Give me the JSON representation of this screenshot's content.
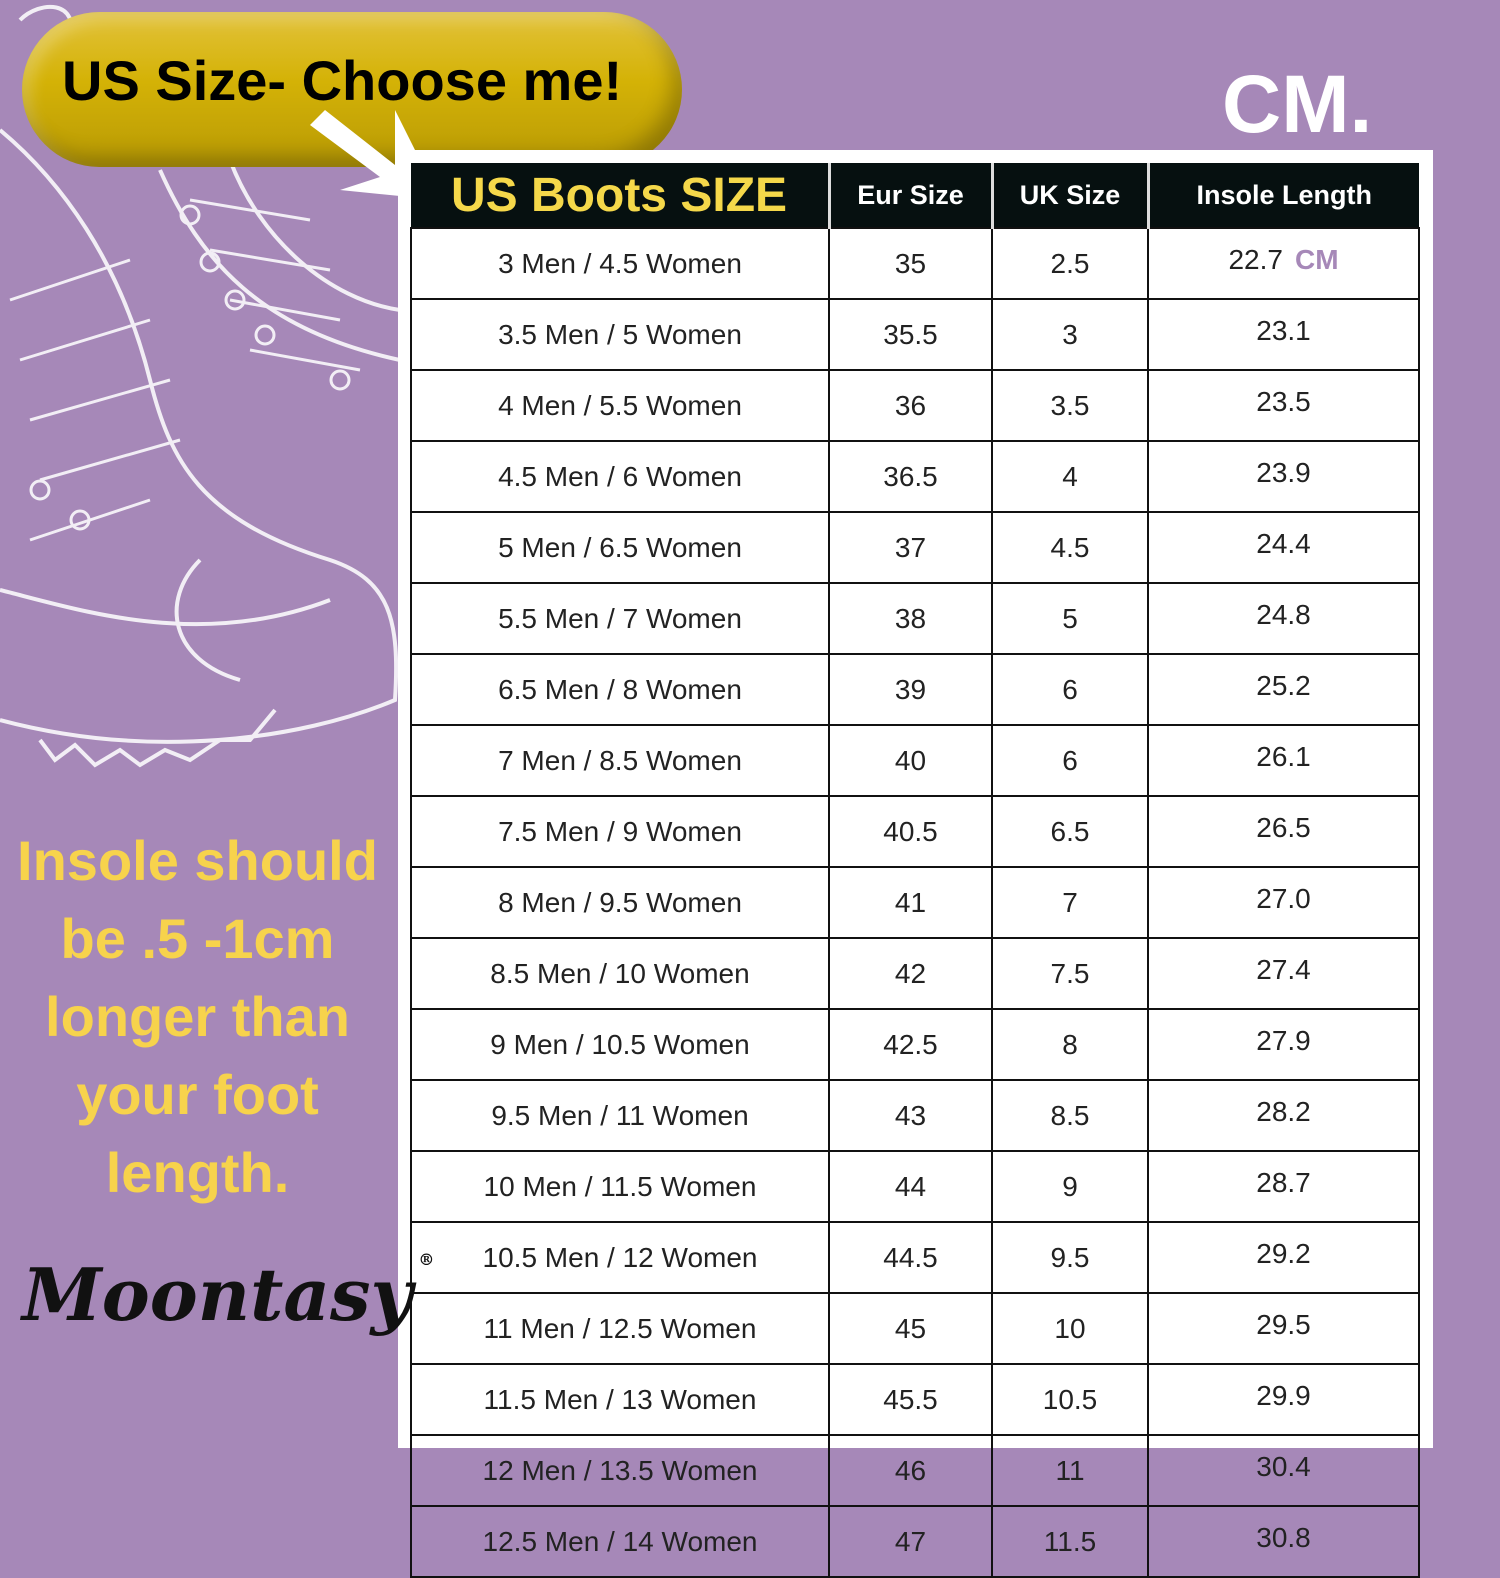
{
  "banner": {
    "text": "US Size- Choose me!"
  },
  "unit_title": "CM.",
  "table": {
    "headers": [
      "US Boots SIZE",
      "Eur Size",
      "UK Size",
      "Insole Length"
    ],
    "unit_label": "CM",
    "rows": [
      [
        "3 Men / 4.5 Women",
        "35",
        "2.5",
        "22.7"
      ],
      [
        "3.5 Men / 5 Women",
        "35.5",
        "3",
        "23.1"
      ],
      [
        "4 Men / 5.5 Women",
        "36",
        "3.5",
        "23.5"
      ],
      [
        "4.5 Men / 6 Women",
        "36.5",
        "4",
        "23.9"
      ],
      [
        "5 Men / 6.5 Women",
        "37",
        "4.5",
        "24.4"
      ],
      [
        "5.5 Men / 7 Women",
        "38",
        "5",
        "24.8"
      ],
      [
        "6.5 Men / 8 Women",
        "39",
        "6",
        "25.2"
      ],
      [
        "7 Men / 8.5 Women",
        "40",
        "6",
        "26.1"
      ],
      [
        "7.5 Men / 9 Women",
        "40.5",
        "6.5",
        "26.5"
      ],
      [
        "8 Men / 9.5 Women",
        "41",
        "7",
        "27.0"
      ],
      [
        "8.5 Men / 10 Women",
        "42",
        "7.5",
        "27.4"
      ],
      [
        "9 Men / 10.5 Women",
        "42.5",
        "8",
        "27.9"
      ],
      [
        "9.5 Men / 11 Women",
        "43",
        "8.5",
        "28.2"
      ],
      [
        "10 Men / 11.5 Women",
        "44",
        "9",
        "28.7"
      ],
      [
        "10.5 Men / 12 Women",
        "44.5",
        "9.5",
        "29.2"
      ],
      [
        "11 Men / 12.5 Women",
        "45",
        "10",
        "29.5"
      ],
      [
        "11.5 Men / 13 Women",
        "45.5",
        "10.5",
        "29.9"
      ],
      [
        "12 Men / 13.5 Women",
        "46",
        "11",
        "30.4"
      ],
      [
        "12.5 Men / 14 Women",
        "47",
        "11.5",
        "30.8"
      ]
    ]
  },
  "note_lines": [
    "Insole should",
    "be .5 -1cm",
    "longer than",
    "your foot",
    "length."
  ],
  "logo": {
    "text": "Moontasy",
    "mark": "®"
  },
  "colors": {
    "background": "#a688b8",
    "accent_yellow": "#f7d34c",
    "header": "#061010"
  }
}
